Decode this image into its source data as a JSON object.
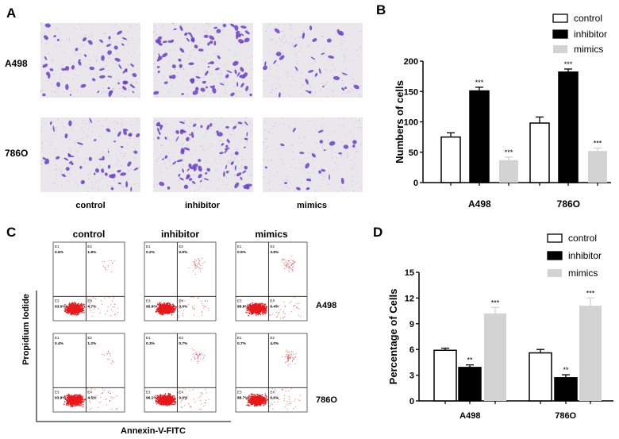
{
  "panel_labels": {
    "a": "A",
    "b": "B",
    "c": "C",
    "d": "D"
  },
  "panel_a": {
    "rows": [
      "A498",
      "786O"
    ],
    "columns": [
      "control",
      "inhibitor",
      "mimics"
    ],
    "stain_color": "#6a3fc8"
  },
  "panel_c": {
    "columns": [
      "control",
      "inhibitor",
      "mimics"
    ],
    "rows": [
      "A498",
      "786O"
    ],
    "xlabel": "Annexin-V-FITC",
    "ylabel": "Propidium Iodide",
    "quadrant_names": [
      "E1",
      "E2",
      "E3",
      "E4"
    ],
    "dot_color": "#e8191b",
    "quadrants": [
      [
        [
          "0.6%",
          "1.8%",
          "93.0%",
          "4.7%"
        ],
        [
          "0.2%",
          "0.9%",
          "95.9%",
          "3.0%"
        ],
        [
          "0.9%",
          "3.8%",
          "88.8%",
          "6.4%"
        ]
      ],
      [
        [
          "0.4%",
          "1.2%",
          "93.9%",
          "4.5%"
        ],
        [
          "0.3%",
          "0.7%",
          "96.1%",
          "3.0%"
        ],
        [
          "0.7%",
          "4.0%",
          "88.7%",
          "6.6%"
        ]
      ]
    ]
  },
  "chart_data": [
    {
      "id": "B",
      "type": "bar",
      "categories": [
        "A498",
        "786O"
      ],
      "ylabel": "Numbers of cells",
      "xlabel": "",
      "ylim": [
        0,
        200
      ],
      "yticks": [
        "0",
        "50",
        "100",
        "150",
        "200"
      ],
      "legend": "top-right",
      "series": [
        {
          "name": "control",
          "color": "#ffffff",
          "values": [
            75,
            98
          ],
          "errors": [
            7,
            10
          ],
          "sig": [
            "",
            ""
          ]
        },
        {
          "name": "inhibitor",
          "color": "#000000",
          "values": [
            151,
            182
          ],
          "errors": [
            6,
            5
          ],
          "sig": [
            "***",
            "***"
          ]
        },
        {
          "name": "mimics",
          "color": "#d3d3d3",
          "values": [
            37,
            52
          ],
          "errors": [
            5,
            5
          ],
          "sig": [
            "***",
            "***"
          ]
        }
      ]
    },
    {
      "id": "D",
      "type": "bar",
      "categories": [
        "A498",
        "786O"
      ],
      "ylabel": "Percentage of Cells",
      "xlabel": "",
      "ylim": [
        0,
        15
      ],
      "yticks": [
        "0",
        "3",
        "6",
        "9",
        "12",
        "15"
      ],
      "legend": "top-right",
      "series": [
        {
          "name": "control",
          "color": "#ffffff",
          "values": [
            5.9,
            5.6
          ],
          "errors": [
            0.25,
            0.4
          ],
          "sig": [
            "",
            ""
          ]
        },
        {
          "name": "inhibitor",
          "color": "#000000",
          "values": [
            3.9,
            2.7
          ],
          "errors": [
            0.3,
            0.35
          ],
          "sig": [
            "**",
            "**"
          ]
        },
        {
          "name": "mimics",
          "color": "#d3d3d3",
          "values": [
            10.2,
            11.1
          ],
          "errors": [
            0.7,
            0.9
          ],
          "sig": [
            "***",
            "***"
          ]
        }
      ]
    }
  ]
}
